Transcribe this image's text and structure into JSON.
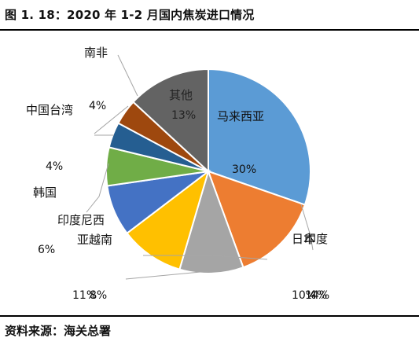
{
  "figure": {
    "title": "图 1. 18：2020 年 1-2 月国内焦炭进口情况",
    "source": "资料来源：海关总署"
  },
  "chart_data": {
    "type": "pie",
    "title": "",
    "slices": [
      {
        "name": "马来西亚",
        "value": 30,
        "label": "30%",
        "color": "#5B9BD5"
      },
      {
        "name": "日本",
        "value": 14,
        "label": "14%",
        "color": "#ED7D31"
      },
      {
        "name": "印度",
        "value": 10,
        "label": "10%",
        "color": "#A5A5A5"
      },
      {
        "name": "亚越南",
        "value": 10,
        "label": "",
        "color": "#FFC000"
      },
      {
        "name": "印度尼西",
        "value": 8,
        "label": "8%",
        "color": "#4472C4"
      },
      {
        "name": "韩国",
        "value": 6,
        "label": "6%",
        "color": "#70AD47"
      },
      {
        "name": "中国台湾",
        "value": 4,
        "label": "4%",
        "color": "#255E91"
      },
      {
        "name": "南非",
        "value": 4,
        "label": "4%",
        "color": "#9E480E"
      },
      {
        "name": "其他",
        "value": 13,
        "label": "13%",
        "color": "#636363"
      }
    ],
    "stray_labels": [
      "11%",
      "4%"
    ],
    "legend": "none"
  }
}
